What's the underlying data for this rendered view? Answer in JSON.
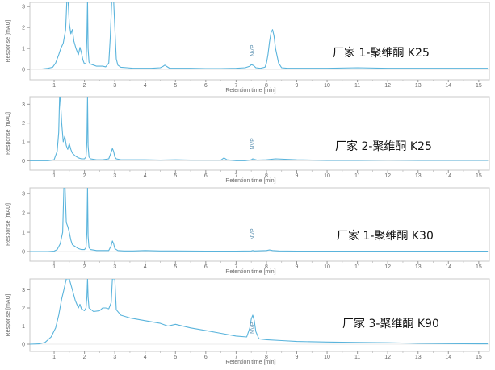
{
  "chart_data": [
    {
      "type": "line",
      "sample_label": "厂家 1-聚维酮 K25",
      "xlabel": "Retention time [min]",
      "ylabel": "Response [mAU]",
      "xlim": [
        0.2,
        15.35
      ],
      "ylim": [
        -0.5,
        3.2
      ],
      "xticks": [
        1,
        2,
        3,
        4,
        5,
        6,
        7,
        8,
        9,
        10,
        11,
        12,
        13,
        14,
        15
      ],
      "yticks": [
        0,
        1,
        2,
        3
      ],
      "grid": false,
      "line_color": "#5ab4dc",
      "annotations": [
        {
          "text": "NVP",
          "x": 7.55
        }
      ],
      "series": [
        {
          "x": [
            0.2,
            0.6,
            0.8,
            0.95,
            1.05,
            1.15,
            1.22,
            1.3,
            1.38,
            1.42,
            1.46,
            1.5,
            1.55,
            1.6,
            1.65,
            1.72,
            1.8,
            1.85,
            1.9,
            1.95,
            2.0,
            2.05,
            2.08,
            2.1,
            2.12,
            2.15,
            2.2,
            2.3,
            2.4,
            2.5,
            2.6,
            2.7,
            2.8,
            2.85,
            2.9,
            2.93,
            2.96,
            3.0,
            3.05,
            3.1,
            3.2,
            3.4,
            3.6,
            3.8,
            4.0,
            4.2,
            4.5,
            4.6,
            4.65,
            4.7,
            4.8,
            5.0,
            5.5,
            6.0,
            6.5,
            7.0,
            7.3,
            7.45,
            7.5,
            7.55,
            7.6,
            7.65,
            7.8,
            7.95,
            8.0,
            8.05,
            8.1,
            8.15,
            8.2,
            8.25,
            8.3,
            8.4,
            8.5,
            8.7,
            9.0,
            10.0,
            11.0,
            12.0,
            13.0,
            14.0,
            15.0,
            15.3
          ],
          "y": [
            0.02,
            0.02,
            0.05,
            0.1,
            0.3,
            0.7,
            1.0,
            1.25,
            1.9,
            3.3,
            3.3,
            2.2,
            1.7,
            1.9,
            1.35,
            1.0,
            0.7,
            1.05,
            0.8,
            0.45,
            0.25,
            0.3,
            1.5,
            3.3,
            1.0,
            0.35,
            0.25,
            0.2,
            0.15,
            0.15,
            0.15,
            0.12,
            0.3,
            1.5,
            3.3,
            3.3,
            3.3,
            2.0,
            0.5,
            0.2,
            0.1,
            0.08,
            0.05,
            0.05,
            0.05,
            0.05,
            0.08,
            0.15,
            0.2,
            0.15,
            0.06,
            0.05,
            0.05,
            0.04,
            0.04,
            0.05,
            0.08,
            0.15,
            0.22,
            0.2,
            0.15,
            0.08,
            0.05,
            0.1,
            0.3,
            0.7,
            1.3,
            1.75,
            1.9,
            1.6,
            1.0,
            0.3,
            0.08,
            0.05,
            0.05,
            0.05,
            0.08,
            0.05,
            0.05,
            0.05,
            0.05,
            0.05
          ]
        }
      ]
    },
    {
      "type": "line",
      "sample_label": "厂家 2-聚维酮 K25",
      "xlabel": "Retention time [min]",
      "ylabel": "Response [mAU]",
      "xlim": [
        0.2,
        15.35
      ],
      "ylim": [
        -0.5,
        3.4
      ],
      "xticks": [
        1,
        2,
        3,
        4,
        5,
        6,
        7,
        8,
        9,
        10,
        11,
        12,
        13,
        14,
        15
      ],
      "yticks": [
        0,
        1,
        2,
        3
      ],
      "grid": false,
      "line_color": "#5ab4dc",
      "annotations": [
        {
          "text": "NVP",
          "x": 7.55
        }
      ],
      "series": [
        {
          "x": [
            0.2,
            0.8,
            1.0,
            1.1,
            1.15,
            1.18,
            1.2,
            1.25,
            1.3,
            1.35,
            1.4,
            1.45,
            1.5,
            1.55,
            1.6,
            1.7,
            1.8,
            1.9,
            2.0,
            2.05,
            2.08,
            2.1,
            2.12,
            2.15,
            2.2,
            2.4,
            2.6,
            2.8,
            2.88,
            2.92,
            2.96,
            3.0,
            3.05,
            3.2,
            3.5,
            4.0,
            4.5,
            5.0,
            5.5,
            6.0,
            6.5,
            6.6,
            6.7,
            7.0,
            7.3,
            7.5,
            7.55,
            7.6,
            7.7,
            8.0,
            8.3,
            9.0,
            10.0,
            11.0,
            12.0,
            13.0,
            14.0,
            15.0,
            15.3
          ],
          "y": [
            0.0,
            0.0,
            0.05,
            0.5,
            1.5,
            3.4,
            3.4,
            2.0,
            1.0,
            1.3,
            0.8,
            0.6,
            0.9,
            0.6,
            0.4,
            0.25,
            0.15,
            0.1,
            0.1,
            0.2,
            1.0,
            3.4,
            0.8,
            0.2,
            0.1,
            0.05,
            0.05,
            0.1,
            0.45,
            0.65,
            0.5,
            0.2,
            0.1,
            0.05,
            0.05,
            0.05,
            0.03,
            0.05,
            0.03,
            0.03,
            0.03,
            0.15,
            0.05,
            0.0,
            0.0,
            0.05,
            0.1,
            0.07,
            0.03,
            0.05,
            0.1,
            0.05,
            0.02,
            0.02,
            0.03,
            0.02,
            0.02,
            0.02,
            0.02
          ]
        }
      ]
    },
    {
      "type": "line",
      "sample_label": "厂家 1-聚维酮 K30",
      "xlabel": "Retention time [min]",
      "ylabel": "Response [mAU]",
      "xlim": [
        0.2,
        15.35
      ],
      "ylim": [
        -0.5,
        3.3
      ],
      "xticks": [
        1,
        2,
        3,
        4,
        5,
        6,
        7,
        8,
        9,
        10,
        11,
        12,
        13,
        14,
        15
      ],
      "yticks": [
        0,
        1,
        2,
        3
      ],
      "grid": false,
      "line_color": "#5ab4dc",
      "annotations": [
        {
          "text": "NVP",
          "x": 7.55
        }
      ],
      "series": [
        {
          "x": [
            0.2,
            0.8,
            1.0,
            1.1,
            1.2,
            1.28,
            1.32,
            1.36,
            1.4,
            1.45,
            1.5,
            1.55,
            1.6,
            1.7,
            1.8,
            1.9,
            2.0,
            2.05,
            2.08,
            2.1,
            2.12,
            2.15,
            2.2,
            2.4,
            2.6,
            2.8,
            2.88,
            2.92,
            2.96,
            3.0,
            3.1,
            3.3,
            3.6,
            4.0,
            4.5,
            5.0,
            6.0,
            7.0,
            7.5,
            7.55,
            7.6,
            8.0,
            8.1,
            8.2,
            8.4,
            9.0,
            10.0,
            11.0,
            12.0,
            13.0,
            14.0,
            15.0,
            15.3
          ],
          "y": [
            0.0,
            0.0,
            0.02,
            0.1,
            0.4,
            1.0,
            3.3,
            3.3,
            1.5,
            1.3,
            1.0,
            0.6,
            0.35,
            0.25,
            0.15,
            0.1,
            0.1,
            0.2,
            1.0,
            3.3,
            0.8,
            0.2,
            0.1,
            0.05,
            0.05,
            0.05,
            0.3,
            0.55,
            0.4,
            0.15,
            0.05,
            0.03,
            0.03,
            0.05,
            0.03,
            0.03,
            0.02,
            0.02,
            0.03,
            0.05,
            0.03,
            0.05,
            0.08,
            0.05,
            0.03,
            0.02,
            0.02,
            0.02,
            0.02,
            0.02,
            0.02,
            0.02,
            0.02
          ]
        }
      ]
    },
    {
      "type": "line",
      "sample_label": "厂家 3-聚维酮 K90",
      "xlabel": "Retention time [min]",
      "ylabel": "Response [mAU]",
      "xlim": [
        0.2,
        15.35
      ],
      "ylim": [
        -0.4,
        3.6
      ],
      "xticks": [
        1,
        2,
        3,
        4,
        5,
        6,
        7,
        8,
        9,
        10,
        11,
        12,
        13,
        14,
        15
      ],
      "yticks": [
        0,
        1,
        2,
        3
      ],
      "grid": false,
      "line_color": "#5ab4dc",
      "annotations": [
        {
          "text": "NVP",
          "x": 7.55
        }
      ],
      "series": [
        {
          "x": [
            0.2,
            0.5,
            0.7,
            0.9,
            1.05,
            1.15,
            1.25,
            1.32,
            1.4,
            1.45,
            1.5,
            1.6,
            1.7,
            1.8,
            1.85,
            1.9,
            2.0,
            2.05,
            2.08,
            2.1,
            2.12,
            2.15,
            2.3,
            2.5,
            2.6,
            2.7,
            2.8,
            2.88,
            2.92,
            2.96,
            3.0,
            3.05,
            3.2,
            3.5,
            4.0,
            4.5,
            4.75,
            5.0,
            5.5,
            6.0,
            6.5,
            7.0,
            7.35,
            7.45,
            7.5,
            7.55,
            7.6,
            7.65,
            7.75,
            8.0,
            8.5,
            9.0,
            10.0,
            11.0,
            12.0,
            13.0,
            14.0,
            15.0,
            15.3
          ],
          "y": [
            0.0,
            0.02,
            0.1,
            0.4,
            0.9,
            1.6,
            2.5,
            3.0,
            3.6,
            3.6,
            3.6,
            3.0,
            2.4,
            2.0,
            2.2,
            1.95,
            1.85,
            2.0,
            2.6,
            3.6,
            2.6,
            2.0,
            1.8,
            1.85,
            2.0,
            2.0,
            1.95,
            2.3,
            3.6,
            3.6,
            3.6,
            1.9,
            1.6,
            1.45,
            1.3,
            1.15,
            1.0,
            1.1,
            0.9,
            0.75,
            0.6,
            0.45,
            0.4,
            0.9,
            1.4,
            1.6,
            1.3,
            0.7,
            0.3,
            0.25,
            0.2,
            0.15,
            0.12,
            0.1,
            0.08,
            0.05,
            0.03,
            0.02,
            0.02
          ]
        }
      ]
    }
  ]
}
